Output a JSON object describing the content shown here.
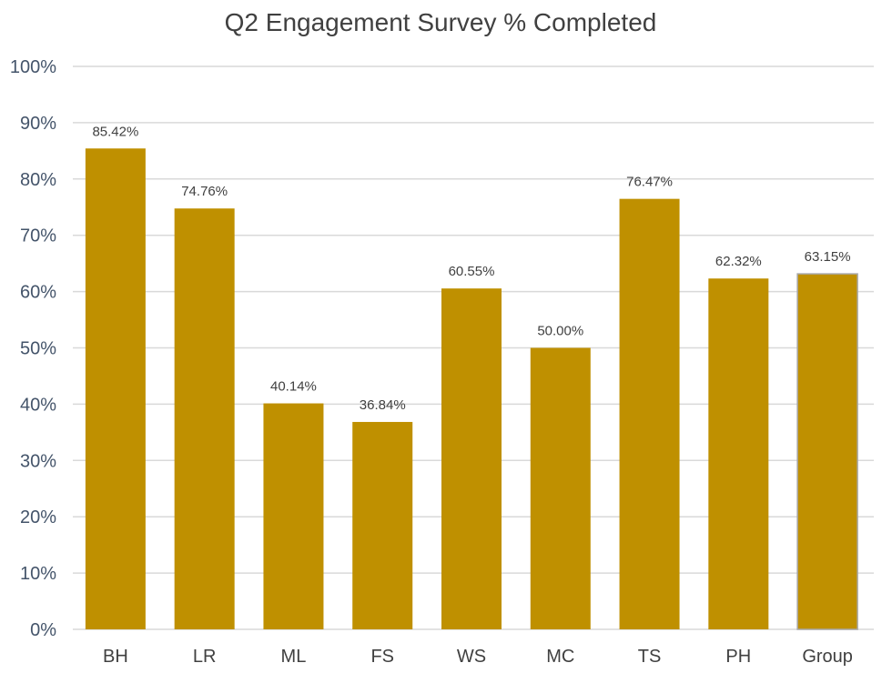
{
  "chart_data": {
    "type": "bar",
    "title": "Q2 Engagement Survey % Completed",
    "xlabel": "",
    "ylabel": "",
    "categories": [
      "BH",
      "LR",
      "ML",
      "FS",
      "WS",
      "MC",
      "TS",
      "PH",
      "Group"
    ],
    "values": [
      85.42,
      74.76,
      40.14,
      36.84,
      60.55,
      50.0,
      76.47,
      62.32,
      63.15
    ],
    "data_labels": [
      "85.42%",
      "74.76%",
      "40.14%",
      "36.84%",
      "60.55%",
      "50.00%",
      "76.47%",
      "62.32%",
      "63.15%"
    ],
    "ylim": [
      0,
      100
    ],
    "yticks": [
      0,
      10,
      20,
      30,
      40,
      50,
      60,
      70,
      80,
      90,
      100
    ],
    "ytick_labels": [
      "0%",
      "10%",
      "20%",
      "30%",
      "40%",
      "50%",
      "60%",
      "70%",
      "80%",
      "90%",
      "100%"
    ],
    "grid": true,
    "legend": "none",
    "colors": {
      "bar": "#bf9000",
      "bar_edge": "#a8a8a8",
      "grid": "#d9d9d9",
      "title": "#404040",
      "ytick": "#44546a",
      "xtick": "#404040"
    }
  }
}
